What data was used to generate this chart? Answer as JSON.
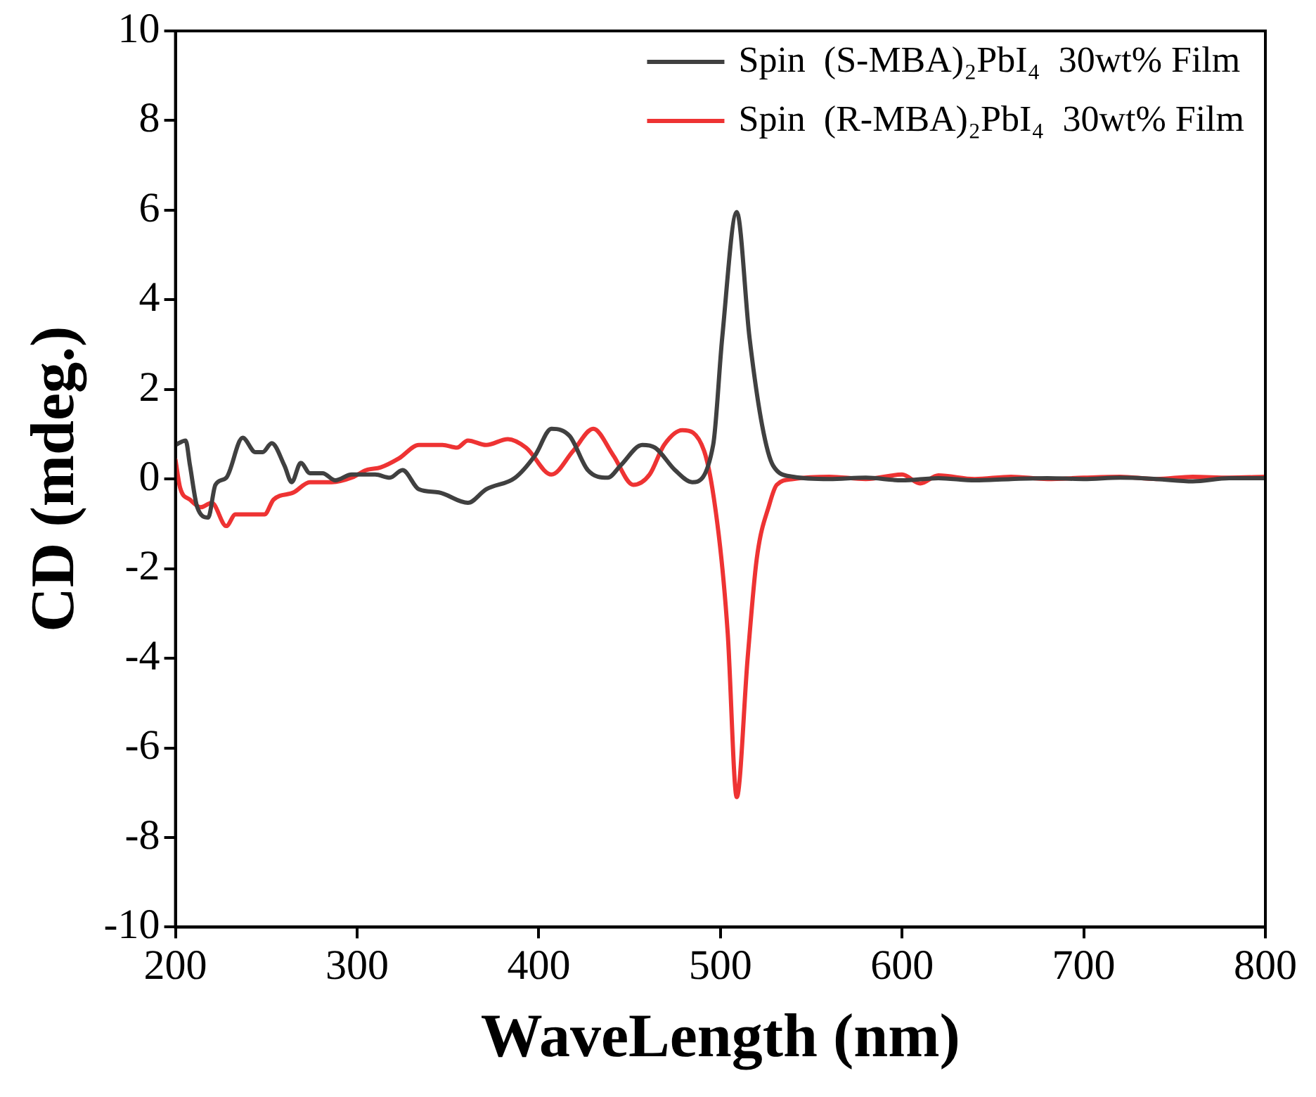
{
  "chart_data": {
    "type": "line",
    "xlabel": "WaveLength (nm)",
    "ylabel": "CD (mdeg.)",
    "xlim": [
      200,
      800
    ],
    "xticks": [
      200,
      300,
      400,
      500,
      600,
      700,
      800
    ],
    "ylim": [
      -10,
      10
    ],
    "yticks": [
      -10,
      -8,
      -6,
      -4,
      -2,
      0,
      2,
      4,
      6,
      8,
      10
    ],
    "grid": false,
    "legend": "top right",
    "marker": "none",
    "line_style": "solid",
    "series": [
      {
        "name": "Spin  (S-MBA)₂PbI₄  30wt% Film",
        "color": "#404040",
        "x": [
          200,
          205.6,
          208,
          212,
          218,
          222,
          228,
          237,
          244,
          248,
          253,
          260,
          264,
          269,
          274,
          281,
          288,
          297,
          310,
          318,
          325,
          334,
          345,
          361,
          371,
          387,
          398,
          407,
          417,
          427,
          438,
          445,
          457,
          464,
          475,
          484.5,
          496,
          501,
          509,
          516,
          523,
          529,
          540,
          560,
          580,
          600,
          620,
          640,
          660,
          680,
          700,
          720,
          740,
          760,
          780,
          800
        ],
        "values": [
          0.76,
          0.86,
          0.3,
          -0.63,
          -0.86,
          -0.13,
          0.03,
          0.92,
          0.6,
          0.6,
          0.8,
          0.3,
          -0.07,
          0.36,
          0.13,
          0.13,
          -0.03,
          0.1,
          0.1,
          0.03,
          0.2,
          -0.23,
          -0.3,
          -0.53,
          -0.23,
          0.03,
          0.53,
          1.12,
          0.96,
          0.2,
          0.03,
          0.3,
          0.76,
          0.7,
          0.2,
          -0.07,
          0.76,
          3.16,
          5.96,
          3.16,
          1.19,
          0.3,
          0.05,
          0,
          0.03,
          -0.03,
          0.02,
          -0.03,
          0,
          0.02,
          0,
          0.03,
          0,
          -0.05,
          0.02,
          0.02
        ]
      },
      {
        "name": "Spin  (R-MBA)₂PbI₄  30wt% Film",
        "color": "#ee3333",
        "x": [
          200,
          202.6,
          208,
          214,
          220,
          228,
          233,
          240,
          249,
          254,
          265,
          274,
          286,
          297,
          305,
          313,
          323,
          334,
          347,
          355,
          361,
          371,
          383,
          393,
          407,
          419,
          430,
          441,
          452,
          461,
          469,
          479,
          491,
          499,
          504,
          509,
          515,
          520,
          527,
          531,
          540,
          560,
          580,
          600,
          610,
          620,
          640,
          660,
          680,
          700,
          720,
          740,
          760,
          780,
          800
        ],
        "values": [
          0.43,
          -0.2,
          -0.46,
          -0.63,
          -0.53,
          -1.05,
          -0.79,
          -0.79,
          -0.79,
          -0.46,
          -0.3,
          -0.07,
          -0.07,
          0.03,
          0.2,
          0.26,
          0.46,
          0.76,
          0.76,
          0.7,
          0.86,
          0.76,
          0.89,
          0.7,
          0.1,
          0.63,
          1.12,
          0.53,
          -0.13,
          0.1,
          0.76,
          1.09,
          0.63,
          -1.22,
          -3.43,
          -7.1,
          -3.99,
          -1.78,
          -0.56,
          -0.13,
          0,
          0.05,
          0,
          0.1,
          -0.1,
          0.08,
          0,
          0.05,
          0,
          0.03,
          0.05,
          0,
          0.05,
          0.03,
          0.05
        ]
      }
    ]
  }
}
